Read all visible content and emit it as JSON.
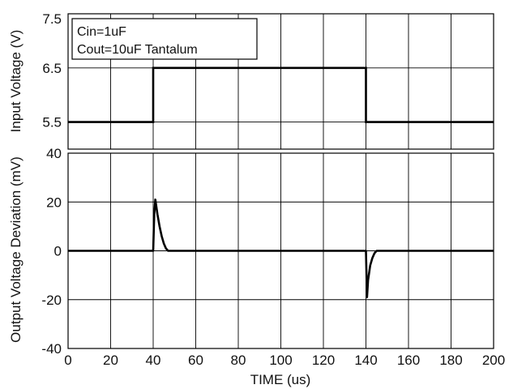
{
  "chart_data": [
    {
      "type": "line",
      "ylabel": "Input Voltage (V)",
      "xlim": [
        0,
        200
      ],
      "ylim": [
        5.0,
        7.5
      ],
      "yticks": [
        5.5,
        6.5,
        7.5
      ],
      "grid": true,
      "legend": [
        "Cin=1uF",
        "Cout=10uF Tantalum"
      ],
      "legend_position": "top-left",
      "series": [
        {
          "x": [
            0,
            40,
            40,
            140,
            140,
            200
          ],
          "y": [
            5.5,
            5.5,
            6.5,
            6.5,
            5.5,
            5.5
          ]
        }
      ]
    },
    {
      "type": "line",
      "xlabel": "TIME (us)",
      "ylabel": "Output Voltage Deviation (mV)",
      "xlim": [
        0,
        200
      ],
      "ylim": [
        -40,
        40
      ],
      "yticks": [
        -40,
        -20,
        0,
        20,
        40
      ],
      "xticks": [
        0,
        20,
        40,
        60,
        80,
        100,
        120,
        140,
        160,
        180,
        200
      ],
      "grid": true,
      "series": [
        {
          "x": [
            0,
            40,
            40.5,
            41,
            42,
            43,
            44,
            45,
            46,
            47,
            48,
            140,
            140.5,
            141,
            142,
            143,
            144,
            145,
            200
          ],
          "y": [
            0,
            0,
            15,
            21,
            15,
            10,
            6,
            3,
            1,
            0,
            0,
            0,
            -19,
            -12,
            -6,
            -3,
            -1,
            0,
            0
          ]
        }
      ]
    }
  ]
}
